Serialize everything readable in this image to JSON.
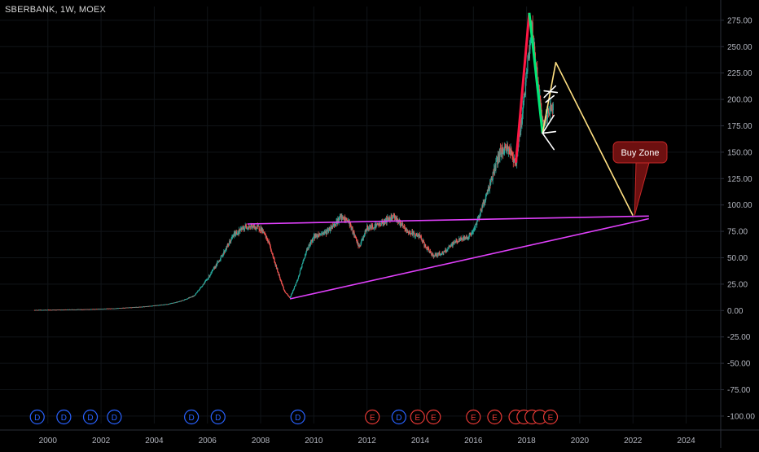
{
  "header": {
    "symbol_label": "SBERBANK, 1W, MOEX"
  },
  "colors": {
    "background": "#000000",
    "grid": "#101418",
    "axis_line": "#2a2e39",
    "axis_text": "#b2b5be",
    "candle_up": "#26a69a",
    "candle_down": "#ef5350",
    "trendline": "#e040fb",
    "red_leg": "#ff1744",
    "green_leg": "#00e676",
    "projection": "#ffe082",
    "white_marks": "#ffffff",
    "buy_zone_fill": "#6d1010",
    "buy_zone_border": "#c62828",
    "dividend_marker": "#2962ff",
    "earnings_marker": "#e53935"
  },
  "chart_data": {
    "type": "candlestick",
    "x_ticks": [
      "2000",
      "2002",
      "2004",
      "2006",
      "2008",
      "2010",
      "2012",
      "2014",
      "2016",
      "2018",
      "2020",
      "2022",
      "2024"
    ],
    "y_ticks": [
      "275.00",
      "250.00",
      "225.00",
      "200.00",
      "175.00",
      "150.00",
      "125.00",
      "100.00",
      "75.00",
      "50.00",
      "25.00",
      "0.00",
      "-25.00",
      "-50.00",
      "-75.00",
      "-100.00"
    ],
    "xlim": [
      1998.2,
      2025.3
    ],
    "ylim": [
      -107,
      288
    ],
    "grid": true,
    "price_path": [
      [
        1999.5,
        0.5
      ],
      [
        2000.5,
        0.8
      ],
      [
        2001.5,
        1.2
      ],
      [
        2002.5,
        2.0
      ],
      [
        2003.5,
        3.5
      ],
      [
        2004.5,
        6.0
      ],
      [
        2005.0,
        9.0
      ],
      [
        2005.5,
        14.0
      ],
      [
        2006.0,
        30.0
      ],
      [
        2006.5,
        50.0
      ],
      [
        2007.0,
        72.0
      ],
      [
        2007.5,
        80.0
      ],
      [
        2008.0,
        78.0
      ],
      [
        2008.3,
        65.0
      ],
      [
        2008.6,
        40.0
      ],
      [
        2008.9,
        18.0
      ],
      [
        2009.1,
        12.0
      ],
      [
        2009.4,
        30.0
      ],
      [
        2009.7,
        55.0
      ],
      [
        2010.0,
        70.0
      ],
      [
        2010.5,
        75.0
      ],
      [
        2011.0,
        88.0
      ],
      [
        2011.3,
        85.0
      ],
      [
        2011.7,
        60.0
      ],
      [
        2012.0,
        78.0
      ],
      [
        2012.5,
        82.0
      ],
      [
        2013.0,
        90.0
      ],
      [
        2013.5,
        75.0
      ],
      [
        2014.0,
        70.0
      ],
      [
        2014.2,
        60.0
      ],
      [
        2014.5,
        52.0
      ],
      [
        2014.9,
        55.0
      ],
      [
        2015.3,
        65.0
      ],
      [
        2015.8,
        70.0
      ],
      [
        2016.0,
        75.0
      ],
      [
        2016.5,
        110.0
      ],
      [
        2017.0,
        150.0
      ],
      [
        2017.3,
        155.0
      ],
      [
        2017.6,
        140.0
      ],
      [
        2017.9,
        200.0
      ],
      [
        2018.2,
        270.0
      ],
      [
        2018.4,
        220.0
      ],
      [
        2018.6,
        175.0
      ],
      [
        2018.9,
        190.0
      ],
      [
        2019.0,
        195.0
      ]
    ],
    "drawings": [
      {
        "name": "upper-trendline",
        "points": [
          [
            2007.5,
            82
          ],
          [
            2022.6,
            89.5
          ]
        ]
      },
      {
        "name": "lower-trendline",
        "points": [
          [
            2009.1,
            11
          ],
          [
            2022.6,
            87
          ]
        ]
      },
      {
        "name": "red-leg",
        "points": [
          [
            2017.6,
            140
          ],
          [
            2018.1,
            282
          ]
        ]
      },
      {
        "name": "green-leg",
        "points": [
          [
            2018.1,
            282
          ],
          [
            2018.6,
            168
          ]
        ]
      },
      {
        "name": "projection",
        "points": [
          [
            2018.6,
            168
          ],
          [
            2019.1,
            235
          ],
          [
            2022.0,
            90
          ]
        ]
      }
    ],
    "annotation": {
      "text": "Buy Zone",
      "target": [
        2022.0,
        90
      ]
    },
    "events": [
      {
        "letter": "D",
        "year": 1999.6
      },
      {
        "letter": "D",
        "year": 2000.6
      },
      {
        "letter": "D",
        "year": 2001.6
      },
      {
        "letter": "D",
        "year": 2002.5
      },
      {
        "letter": "D",
        "year": 2005.4
      },
      {
        "letter": "D",
        "year": 2006.4
      },
      {
        "letter": "D",
        "year": 2009.4
      },
      {
        "letter": "E",
        "year": 2012.2
      },
      {
        "letter": "D",
        "year": 2013.2
      },
      {
        "letter": "E",
        "year": 2013.9
      },
      {
        "letter": "E",
        "year": 2014.5
      },
      {
        "letter": "E",
        "year": 2016.0
      },
      {
        "letter": "E",
        "year": 2016.8
      },
      {
        "letter": "",
        "year": 2017.6
      },
      {
        "letter": "",
        "year": 2017.9
      },
      {
        "letter": "",
        "year": 2018.2
      },
      {
        "letter": "",
        "year": 2018.5
      },
      {
        "letter": "E",
        "year": 2018.9
      }
    ]
  }
}
